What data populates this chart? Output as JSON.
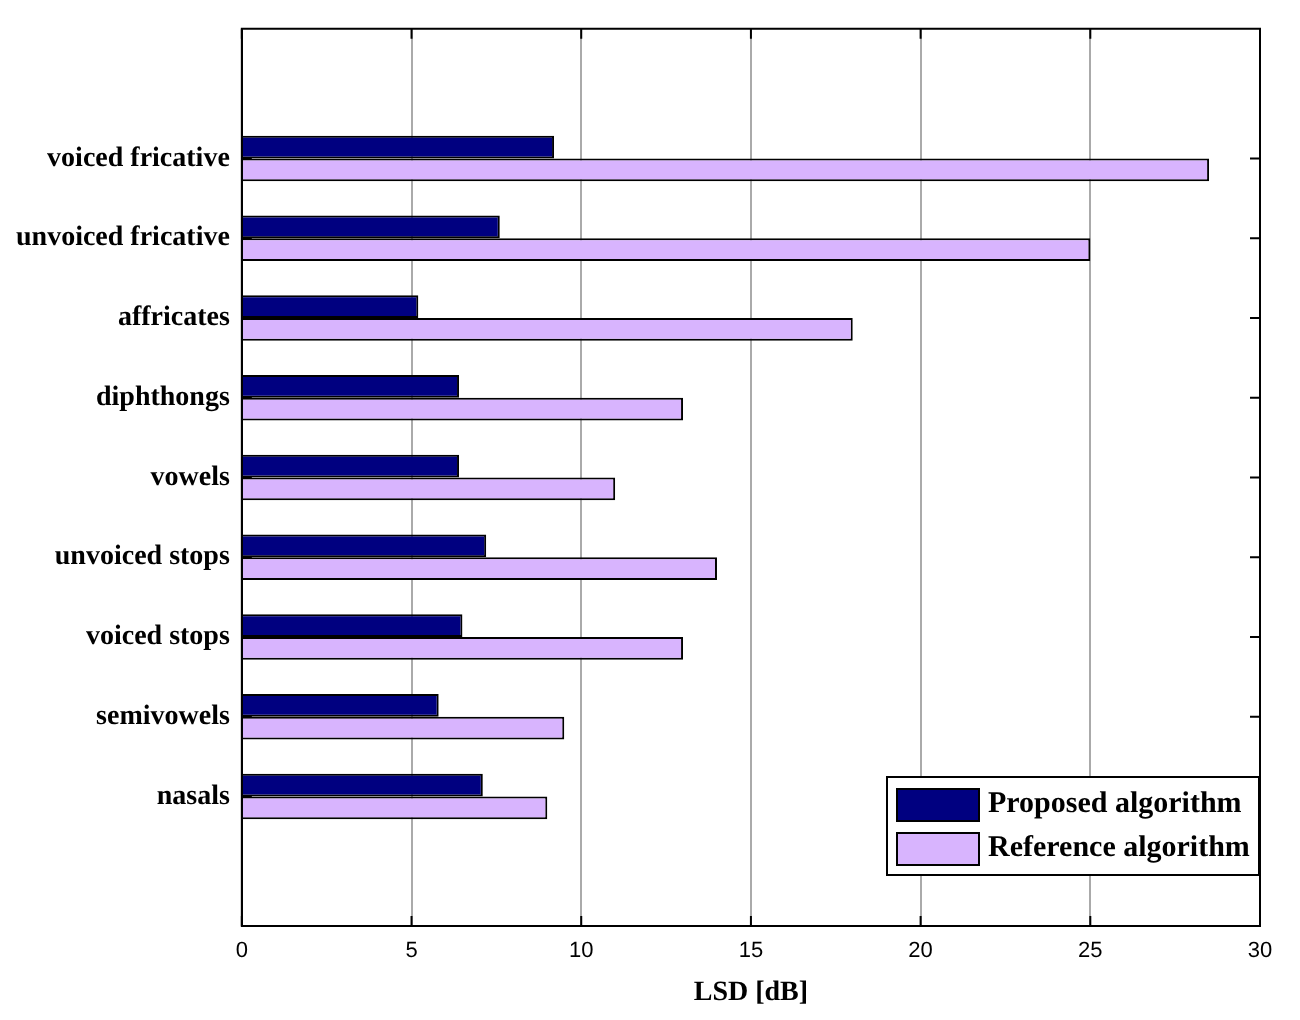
{
  "chart_data": {
    "type": "bar",
    "orientation": "horizontal",
    "xlabel": "LSD [dB]",
    "categories": [
      "voiced fricative",
      "unvoiced fricative",
      "affricates",
      "diphthongs",
      "vowels",
      "unvoiced stops",
      "voiced stops",
      "semivowels",
      "nasals"
    ],
    "series": [
      {
        "name": "Proposed algorithm",
        "color": "#000080",
        "values": [
          9.2,
          7.6,
          5.2,
          6.4,
          6.4,
          7.2,
          6.5,
          5.8,
          7.1
        ]
      },
      {
        "name": "Reference algorithm",
        "color": "#d8b4fe",
        "values": [
          28.5,
          25.0,
          18.0,
          13.0,
          11.0,
          14.0,
          13.0,
          9.5,
          9.0
        ]
      }
    ],
    "xlim": [
      0,
      30
    ],
    "xticks": [
      0,
      5,
      10,
      15,
      20,
      25,
      30
    ],
    "grid": "x",
    "legend": "bottom right"
  }
}
